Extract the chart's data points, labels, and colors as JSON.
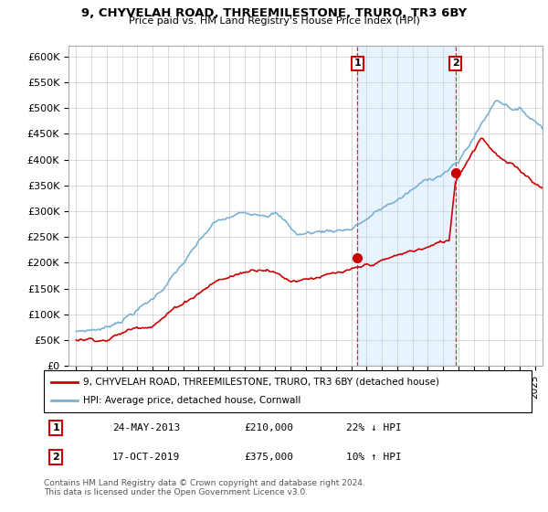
{
  "title1": "9, CHYVELAH ROAD, THREEMILESTONE, TRURO, TR3 6BY",
  "title2": "Price paid vs. HM Land Registry's House Price Index (HPI)",
  "ylim": [
    0,
    620000
  ],
  "xlim_start": 1994.5,
  "xlim_end": 2025.5,
  "transaction1": {
    "date_num": 2013.4,
    "price": 210000,
    "label": "1",
    "pct": "22% ↓ HPI",
    "date_str": "24-MAY-2013"
  },
  "transaction2": {
    "date_num": 2019.8,
    "price": 375000,
    "label": "2",
    "pct": "10% ↑ HPI",
    "date_str": "17-OCT-2019"
  },
  "shade_start": 2013.4,
  "shade_end": 2019.8,
  "red_color": "#cc0000",
  "blue_color": "#7ab0d4",
  "legend1": "9, CHYVELAH ROAD, THREEMILESTONE, TRURO, TR3 6BY (detached house)",
  "legend2": "HPI: Average price, detached house, Cornwall",
  "footer": "Contains HM Land Registry data © Crown copyright and database right 2024.\nThis data is licensed under the Open Government Licence v3.0.",
  "bg_color": "#ffffff",
  "grid_color": "#cccccc",
  "shade_color": "#ddeeff"
}
